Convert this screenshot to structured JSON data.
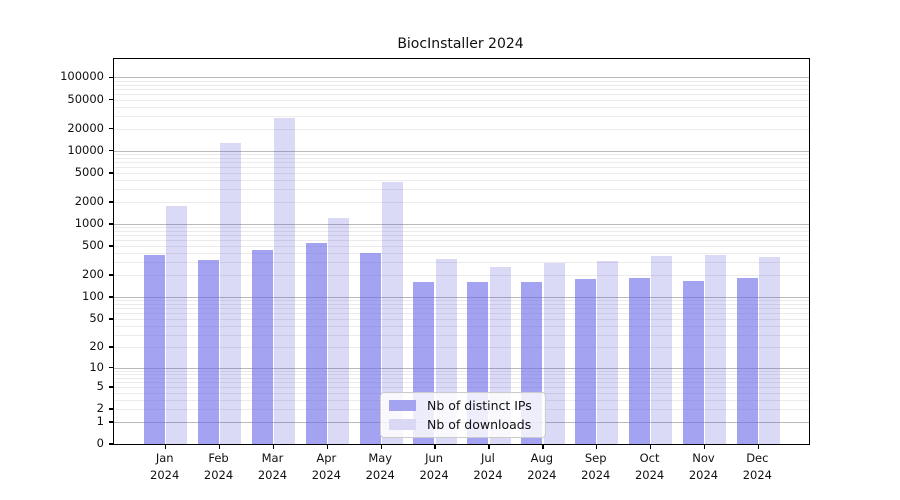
{
  "title": "BiocInstaller 2024",
  "legend": {
    "items": [
      {
        "label": "Nb of distinct IPs",
        "swatch_color": "#a3a3ef"
      },
      {
        "label": "Nb of downloads",
        "swatch_color": "#d9d9f6"
      }
    ]
  },
  "chart_data": {
    "type": "bar",
    "title": "BiocInstaller 2024",
    "categories": [
      "Jan 2024",
      "Feb 2024",
      "Mar 2024",
      "Apr 2024",
      "May 2024",
      "Jun 2024",
      "Jul 2024",
      "Aug 2024",
      "Sep 2024",
      "Oct 2024",
      "Nov 2024",
      "Dec 2024"
    ],
    "series": [
      {
        "name": "Nb of distinct IPs",
        "color": "rgba(106,106,232,0.62)",
        "values": [
          382,
          324,
          448,
          546,
          398,
          163,
          162,
          163,
          179,
          181,
          165,
          184
        ]
      },
      {
        "name": "Nb of downloads",
        "color": "rgba(70,70,210,0.20)",
        "values": [
          1780,
          12600,
          28000,
          1220,
          3700,
          330,
          262,
          292,
          308,
          368,
          377,
          356
        ]
      }
    ],
    "y_scale": "log10(value+1)",
    "y_ticks": [
      0,
      1,
      2,
      5,
      10,
      20,
      50,
      100,
      200,
      500,
      1000,
      2000,
      5000,
      10000,
      20000,
      50000,
      100000
    ],
    "ylim": [
      0,
      178000
    ],
    "grid": true,
    "legend_position": "lower center inside plot"
  },
  "colors": {
    "background": "#ffffff",
    "frame": "#000000",
    "major_grid": "#b9b9b9",
    "minor_grid": "#ebebeb",
    "text": "#111111"
  }
}
